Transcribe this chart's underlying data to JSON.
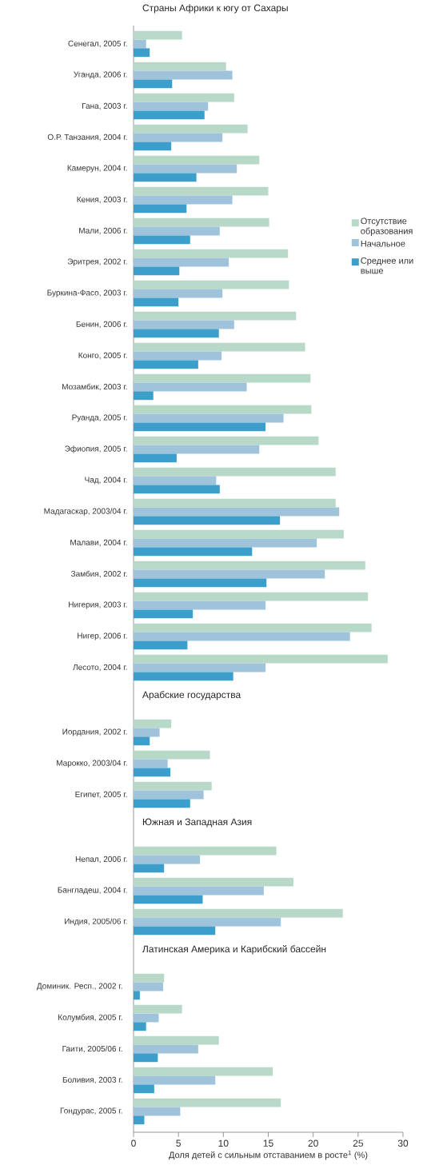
{
  "chart_data": [
    {
      "type": "bar",
      "orientation": "horizontal",
      "title": "Страны Африки к югу от Сахары",
      "categories": [
        "Сенегал, 2005 г.",
        "Уганда, 2006 г.",
        "Гана, 2003 г.",
        "О.Р. Танзания, 2004 г.",
        "Камерун, 2004 г.",
        "Кения, 2003 г.",
        "Мали, 2006 г.",
        "Эритрея, 2002 г.",
        "Буркина-Фасо, 2003 г.",
        "Бенин, 2006 г.",
        "Конго, 2005 г.",
        "Мозамбик, 2003 г.",
        "Руанда, 2005 г.",
        "Эфиопия, 2005 г.",
        "Чад, 2004 г.",
        "Мадагаскар, 2003/04 г.",
        "Малави, 2004 г.",
        "Замбия, 2002 г.",
        "Нигерия, 2003 г.",
        "Нигер, 2006 г.",
        "Лесото, 2004 г."
      ],
      "series": [
        {
          "name": "Отсутствие образования",
          "color": "#b8d9c8",
          "values": [
            5.4,
            10.3,
            11.2,
            12.7,
            14.0,
            15.0,
            15.1,
            17.2,
            17.3,
            18.1,
            19.1,
            19.7,
            19.8,
            20.6,
            22.5,
            22.5,
            23.4,
            25.8,
            26.1,
            26.5,
            28.3
          ]
        },
        {
          "name": "Начальное",
          "color": "#a0c3dc",
          "values": [
            1.4,
            11.0,
            8.3,
            9.9,
            11.5,
            11.0,
            9.6,
            10.6,
            9.9,
            11.2,
            9.8,
            12.6,
            16.7,
            14.0,
            9.2,
            22.9,
            20.4,
            21.3,
            14.7,
            24.1,
            14.7
          ]
        },
        {
          "name": "Среднее или выше",
          "color": "#3c9ecb",
          "values": [
            1.8,
            4.3,
            7.9,
            4.2,
            7.0,
            5.9,
            6.3,
            5.1,
            5.0,
            9.5,
            7.2,
            2.2,
            14.7,
            4.8,
            9.6,
            16.3,
            13.2,
            14.8,
            6.6,
            6.0,
            11.1
          ]
        }
      ],
      "xlim": [
        0,
        30
      ],
      "xticks": [
        0,
        5,
        10,
        15,
        20,
        25,
        30
      ],
      "tick_labels": "y",
      "legend": "right"
    },
    {
      "type": "bar",
      "orientation": "horizontal",
      "title": "Арабские государства",
      "categories": [
        "Иордания, 2002 г.",
        "Марокко, 2003/04 г.",
        "Египет, 2005 г."
      ],
      "series": [
        {
          "color": "#b8d9c8",
          "values": [
            4.2,
            8.5,
            8.7
          ]
        },
        {
          "color": "#a0c3dc",
          "values": [
            2.9,
            3.8,
            7.8
          ]
        },
        {
          "color": "#3c9ecb",
          "values": [
            1.8,
            4.1,
            6.3
          ]
        }
      ],
      "xlim": [
        0,
        30
      ],
      "xticks": [
        0,
        5,
        10,
        15,
        20,
        25,
        30
      ],
      "tick_labels": "y"
    },
    {
      "type": "bar",
      "orientation": "horizontal",
      "title": "Южная и Западная Азия",
      "categories": [
        "Непал, 2006 г.",
        "Бангладеш, 2004 г.",
        "Индия, 2005/06 г."
      ],
      "series": [
        {
          "color": "#b8d9c8",
          "values": [
            15.9,
            17.8,
            23.3
          ]
        },
        {
          "color": "#a0c3dc",
          "values": [
            7.4,
            14.5,
            16.4
          ]
        },
        {
          "color": "#3c9ecb",
          "values": [
            3.4,
            7.7,
            9.1
          ]
        }
      ],
      "xlim": [
        0,
        30
      ],
      "xticks": [
        0,
        5,
        10,
        15,
        20,
        25,
        30
      ],
      "tick_labels": "y"
    },
    {
      "type": "bar",
      "orientation": "horizontal",
      "title": "Латинская Америка и Карибский бассейн",
      "xlabel": "Доля детей с сильным отставанием в росте$^{1}$ (%)",
      "categories": [
        "Доминик. Респ., 2002 г.",
        "Колумбия, 2005 г.",
        "Гаити, 2005/06 г.",
        "Боливия, 2003 г.",
        "Гондурас, 2005 г."
      ],
      "series": [
        {
          "color": "#b8d9c8",
          "values": [
            3.4,
            5.4,
            9.5,
            15.5,
            16.4
          ]
        },
        {
          "color": "#a0c3dc",
          "values": [
            3.3,
            2.8,
            7.2,
            9.1,
            5.2
          ]
        },
        {
          "color": "#3c9ecb",
          "values": [
            0.7,
            1.4,
            2.7,
            2.3,
            1.2
          ]
        }
      ],
      "xlim": [
        0,
        30
      ],
      "xticks": [
        0,
        5,
        10,
        15,
        20,
        25,
        30
      ]
    }
  ]
}
